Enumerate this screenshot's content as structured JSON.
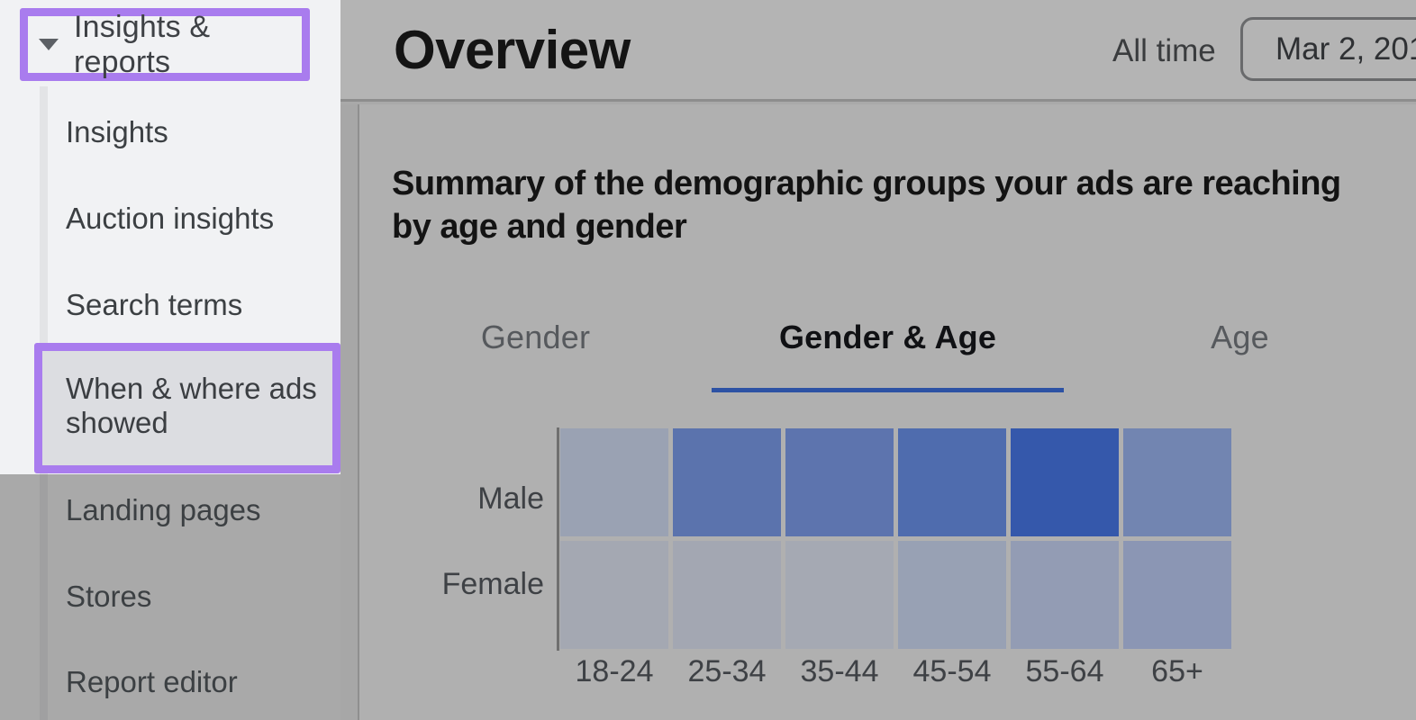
{
  "sidebar": {
    "section_toggle": {
      "label": "Insights & reports"
    },
    "items": [
      {
        "label": "Insights"
      },
      {
        "label": "Auction insights"
      },
      {
        "label": "Search terms"
      },
      {
        "label": "When & where ads showed",
        "highlighted": true
      },
      {
        "label": "Landing pages"
      },
      {
        "label": "Stores"
      },
      {
        "label": "Report editor"
      }
    ],
    "annotation_color": "#a97cee"
  },
  "header": {
    "title": "Overview",
    "date_range_label": "All time",
    "date_button_text": "Mar 2, 201"
  },
  "main": {
    "summary": "Summary of the demographic groups your ads are reaching by age and gender",
    "tabs": [
      {
        "label": "Gender",
        "active": false
      },
      {
        "label": "Gender & Age",
        "active": true
      },
      {
        "label": "Age",
        "active": false
      }
    ],
    "active_tab_underline_color": "#2d52a4"
  },
  "chart_data": {
    "type": "heatmap",
    "title": "Summary of the demographic groups your ads are reaching by age and gender",
    "rows": [
      "Male",
      "Female"
    ],
    "categories": [
      "18-24",
      "25-34",
      "35-44",
      "45-54",
      "55-64",
      "65+"
    ],
    "value_labels_shown": false,
    "legend": "none",
    "intensity": [
      [
        0.3,
        0.7,
        0.7,
        0.78,
        1.0,
        0.55
      ],
      [
        0.12,
        0.12,
        0.1,
        0.25,
        0.3,
        0.42
      ]
    ],
    "cell_colors": [
      [
        "#9aa2b3",
        "#5b73ad",
        "#5d74ae",
        "#4f6cae",
        "#3558ab",
        "#7285b1"
      ],
      [
        "#a4a8b2",
        "#a3a7b2",
        "#a5a9b3",
        "#98a1b4",
        "#939cb4",
        "#8b96b4"
      ]
    ],
    "axis_color": "#6f6f6f"
  }
}
